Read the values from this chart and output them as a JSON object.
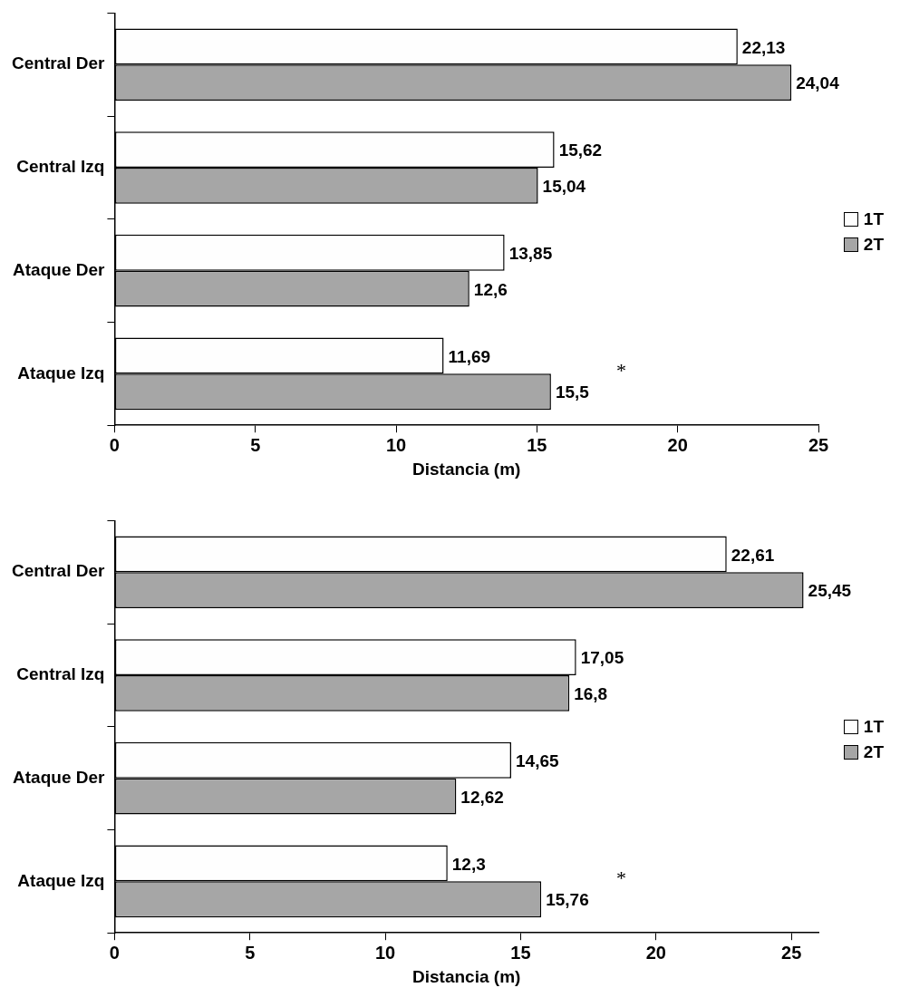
{
  "chart_data": [
    {
      "type": "bar",
      "orientation": "horizontal",
      "xlabel": "Distancia (m)",
      "categories": [
        "Central Der",
        "Central Izq",
        "Ataque Der",
        "Ataque Izq"
      ],
      "series": [
        {
          "name": "1T",
          "color": "#fefefe",
          "values": [
            22.13,
            15.62,
            13.85,
            11.69
          ],
          "value_labels": [
            "22,13",
            "15,62",
            "13,85",
            "11,69"
          ]
        },
        {
          "name": "2T",
          "color": "#a6a6a6",
          "values": [
            24.04,
            15.04,
            12.6,
            15.5
          ],
          "value_labels": [
            "24,04",
            "15,04",
            "12,6",
            "15,5"
          ]
        }
      ],
      "xlim": [
        0,
        25
      ],
      "xticks": [
        0,
        5,
        10,
        15,
        20,
        25
      ],
      "grid": false,
      "legend": "right",
      "annotations": [
        "*"
      ]
    },
    {
      "type": "bar",
      "orientation": "horizontal",
      "xlabel": "Distancia (m)",
      "categories": [
        "Central Der",
        "Central Izq",
        "Ataque Der",
        "Ataque Izq"
      ],
      "series": [
        {
          "name": "1T",
          "color": "#fefefe",
          "values": [
            22.61,
            17.05,
            14.65,
            12.3
          ],
          "value_labels": [
            "22,61",
            "17,05",
            "14,65",
            "12,3"
          ]
        },
        {
          "name": "2T",
          "color": "#a6a6a6",
          "values": [
            25.45,
            16.8,
            12.62,
            15.76
          ],
          "value_labels": [
            "25,45",
            "16,8",
            "12,62",
            "15,76"
          ]
        }
      ],
      "xlim": [
        0,
        26
      ],
      "xticks": [
        0,
        5,
        10,
        15,
        20,
        25
      ],
      "grid": false,
      "legend": "right",
      "annotations": [
        "*"
      ]
    }
  ]
}
